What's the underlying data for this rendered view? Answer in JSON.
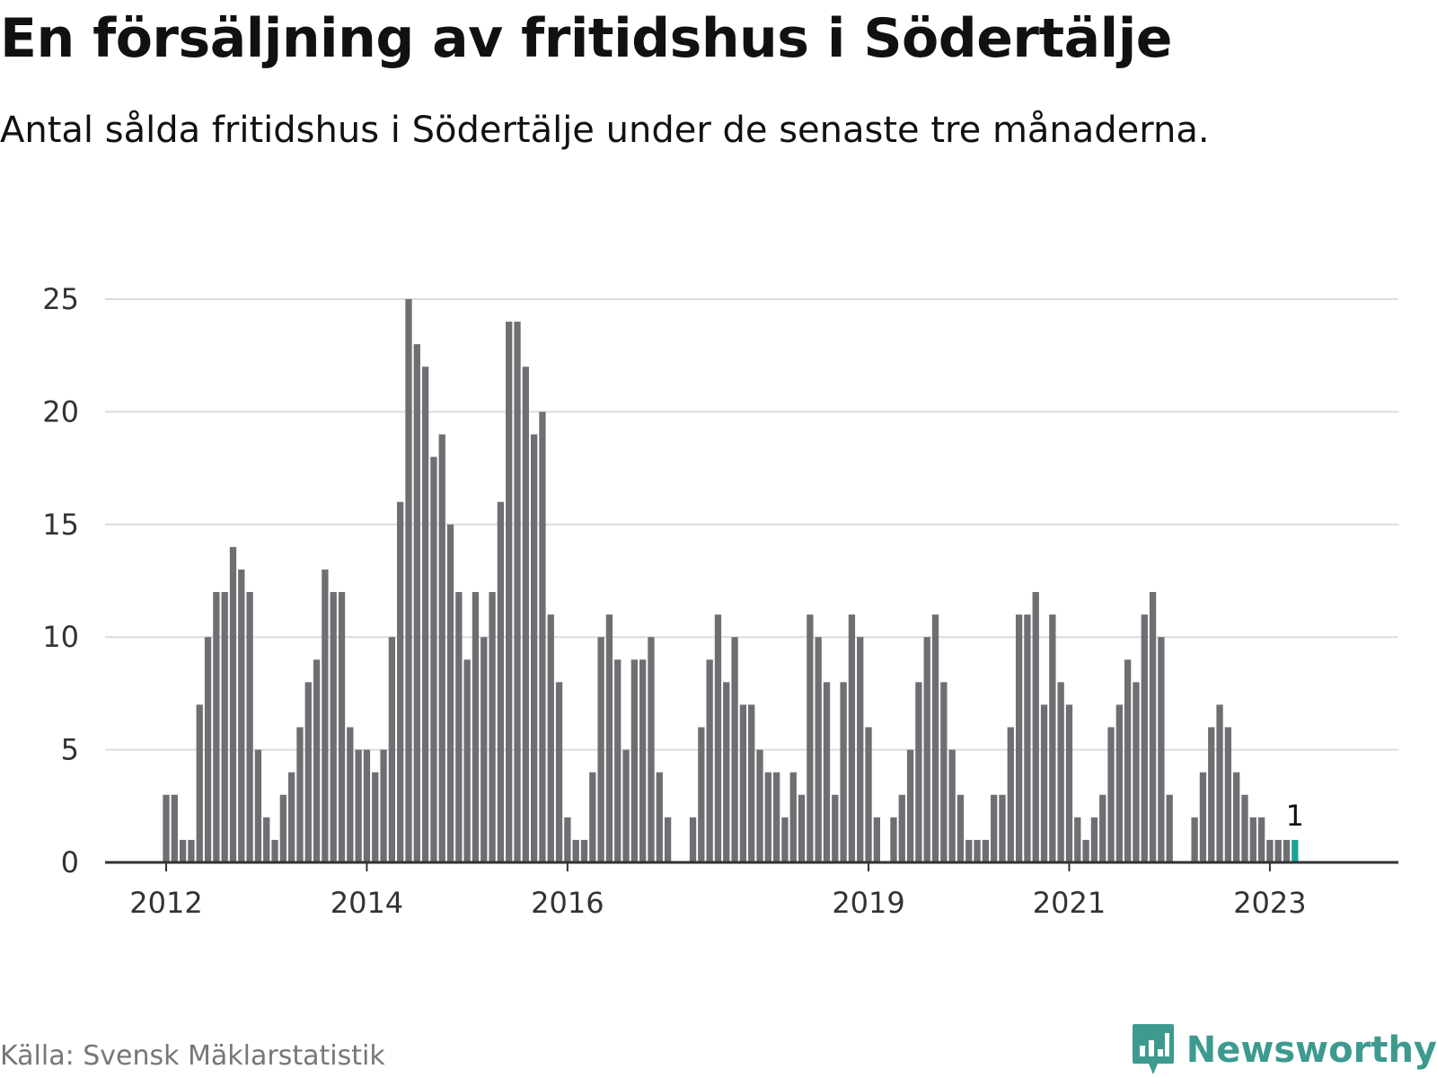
{
  "title": "En försäljning av fritidshus i Södertälje",
  "subtitle": "Antal sålda fritidshus i Södertälje under de senaste tre månaderna.",
  "source": "Källa: Svensk Mäklarstatistik",
  "brand": "Newsworthy",
  "colors": {
    "bar": "#6e6e73",
    "highlight": "#1aa39a",
    "grid": "#dcdcdc",
    "axis": "#333333",
    "brand": "#3d9a8f"
  },
  "chart_data": {
    "type": "bar",
    "title": "En försäljning av fritidshus i Södertälje",
    "xlabel": "",
    "ylabel": "",
    "ylim": [
      0,
      25
    ],
    "yticks": [
      0,
      5,
      10,
      15,
      20,
      25
    ],
    "x_tick_labels": [
      {
        "label": "2012",
        "index": 0
      },
      {
        "label": "2014",
        "index": 24
      },
      {
        "label": "2016",
        "index": 48
      },
      {
        "label": "2019",
        "index": 84
      },
      {
        "label": "2021",
        "index": 108
      },
      {
        "label": "2023",
        "index": 132
      }
    ],
    "start": "2012-01",
    "values": [
      3,
      3,
      1,
      1,
      7,
      10,
      12,
      12,
      14,
      13,
      12,
      5,
      2,
      1,
      3,
      4,
      6,
      8,
      9,
      13,
      12,
      12,
      6,
      5,
      5,
      4,
      5,
      10,
      16,
      25,
      23,
      22,
      18,
      19,
      15,
      12,
      9,
      12,
      10,
      12,
      16,
      24,
      24,
      22,
      19,
      20,
      11,
      8,
      2,
      1,
      1,
      4,
      10,
      11,
      9,
      5,
      9,
      9,
      10,
      4,
      2,
      0,
      0,
      2,
      6,
      9,
      11,
      8,
      10,
      7,
      7,
      5,
      4,
      4,
      2,
      4,
      3,
      11,
      10,
      8,
      3,
      8,
      11,
      10,
      6,
      2,
      0,
      2,
      3,
      5,
      8,
      10,
      11,
      8,
      5,
      3,
      1,
      1,
      1,
      3,
      3,
      6,
      11,
      11,
      12,
      7,
      11,
      8,
      7,
      2,
      1,
      2,
      3,
      6,
      7,
      9,
      8,
      11,
      12,
      10,
      3,
      0,
      0,
      2,
      4,
      6,
      7,
      6,
      4,
      3,
      2,
      2,
      1,
      1,
      1,
      1
    ],
    "highlight_index": 135,
    "highlight_label": "1"
  }
}
